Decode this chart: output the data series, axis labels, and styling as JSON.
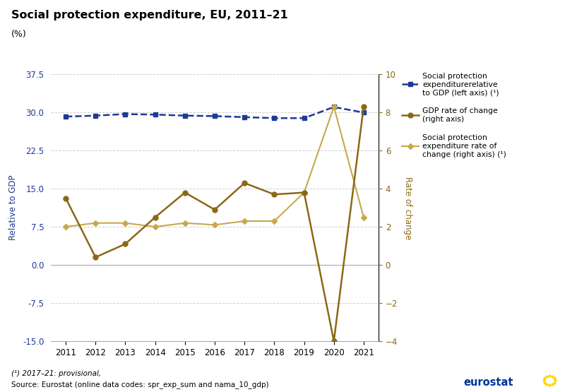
{
  "title": "Social protection expenditure, EU, 2011–21",
  "subtitle": "(%)",
  "years": [
    2011,
    2012,
    2013,
    2014,
    2015,
    2016,
    2017,
    2018,
    2019,
    2020,
    2021
  ],
  "spe_gdp": [
    29.2,
    29.4,
    29.7,
    29.6,
    29.4,
    29.3,
    29.1,
    28.9,
    28.9,
    31.1,
    30.0
  ],
  "gdp_roc": [
    3.5,
    0.4,
    1.1,
    2.5,
    3.8,
    2.9,
    4.3,
    3.7,
    3.8,
    -4.0,
    8.3
  ],
  "spe_roc": [
    2.0,
    2.2,
    2.2,
    2.0,
    2.2,
    2.1,
    2.3,
    2.3,
    3.8,
    8.3,
    2.5
  ],
  "left_ylim": [
    -15.0,
    37.5
  ],
  "left_yticks": [
    -15.0,
    -7.5,
    0.0,
    7.5,
    15.0,
    22.5,
    30.0,
    37.5
  ],
  "right_ylim": [
    -4.0,
    10.0
  ],
  "right_yticks": [
    -4,
    -2,
    0,
    2,
    4,
    6,
    8,
    10
  ],
  "line_blue_color": "#1F3A93",
  "line_gdp_roc_color": "#8B6914",
  "line_spe_roc_color": "#C9A84C",
  "left_axis_color": "#1F3A93",
  "right_axis_color": "#8B6914",
  "footnote1": "(¹) 2017–21: provisional,",
  "footnote2": "Source: Eurostat (online data codes: spr_exp_sum and nama_10_gdp)",
  "grid_color": "#d0d0d0",
  "background_color": "#ffffff"
}
